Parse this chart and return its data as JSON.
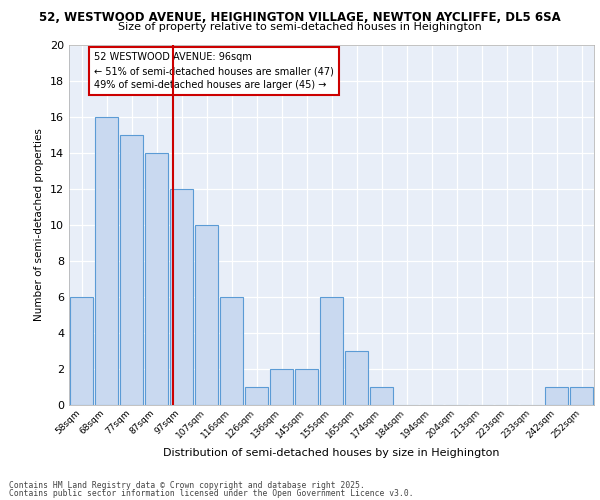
{
  "title1": "52, WESTWOOD AVENUE, HEIGHINGTON VILLAGE, NEWTON AYCLIFFE, DL5 6SA",
  "title2": "Size of property relative to semi-detached houses in Heighington",
  "xlabel": "Distribution of semi-detached houses by size in Heighington",
  "ylabel": "Number of semi-detached properties",
  "categories": [
    "58sqm",
    "68sqm",
    "77sqm",
    "87sqm",
    "97sqm",
    "107sqm",
    "116sqm",
    "126sqm",
    "136sqm",
    "145sqm",
    "155sqm",
    "165sqm",
    "174sqm",
    "184sqm",
    "194sqm",
    "204sqm",
    "213sqm",
    "223sqm",
    "233sqm",
    "242sqm",
    "252sqm"
  ],
  "values": [
    6,
    16,
    15,
    14,
    12,
    10,
    6,
    1,
    2,
    2,
    6,
    3,
    1,
    0,
    0,
    0,
    0,
    0,
    0,
    1,
    1
  ],
  "bar_color": "#c9d9f0",
  "bar_edge_color": "#5b9bd5",
  "vline_idx": 4,
  "vline_color": "#cc0000",
  "annotation_title": "52 WESTWOOD AVENUE: 96sqm",
  "annotation_line1": "← 51% of semi-detached houses are smaller (47)",
  "annotation_line2": "49% of semi-detached houses are larger (45) →",
  "annotation_box_color": "#cc0000",
  "ylim": [
    0,
    20
  ],
  "yticks": [
    0,
    2,
    4,
    6,
    8,
    10,
    12,
    14,
    16,
    18,
    20
  ],
  "bg_color": "#e8eef8",
  "footer1": "Contains HM Land Registry data © Crown copyright and database right 2025.",
  "footer2": "Contains public sector information licensed under the Open Government Licence v3.0."
}
